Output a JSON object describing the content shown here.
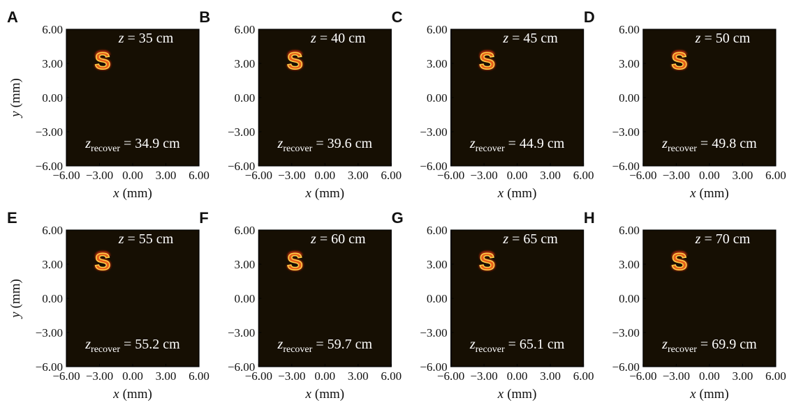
{
  "chart_data": [
    {
      "type": "image",
      "panel": "A",
      "top_label": {
        "symbol": "z",
        "text": "= 35 cm"
      },
      "bottom_label": {
        "symbol": "z",
        "subscript": "recover",
        "text": "= 34.9 cm"
      },
      "xlabel": {
        "symbol": "x",
        "text": "(mm)"
      },
      "ylabel": {
        "symbol": "y",
        "text": "(mm)"
      },
      "xlim": [
        -6,
        6
      ],
      "ylim": [
        -6,
        6
      ],
      "xticks": [
        {
          "value": -6,
          "label": "−6.00"
        },
        {
          "value": -3,
          "label": "−3.00"
        },
        {
          "value": 0,
          "label": "0.00"
        },
        {
          "value": 3,
          "label": "3.00"
        },
        {
          "value": 6,
          "label": "6.00"
        }
      ],
      "yticks": [
        {
          "value": -6,
          "label": "−6.00"
        },
        {
          "value": -3,
          "label": "−3.00"
        },
        {
          "value": 0,
          "label": "0.00"
        },
        {
          "value": 3,
          "label": "3.00"
        },
        {
          "value": 6,
          "label": "6.00"
        }
      ]
    },
    {
      "type": "image",
      "panel": "B",
      "top_label": {
        "symbol": "z",
        "text": "= 40 cm"
      },
      "bottom_label": {
        "symbol": "z",
        "subscript": "recover",
        "text": "= 39.6 cm"
      },
      "xlabel": {
        "symbol": "x",
        "text": "(mm)"
      },
      "xlim": [
        -6,
        6
      ],
      "ylim": [
        -6,
        6
      ],
      "xticks": [
        {
          "value": -6,
          "label": "−6.00"
        },
        {
          "value": -3,
          "label": "−3.00"
        },
        {
          "value": 0,
          "label": "0.00"
        },
        {
          "value": 3,
          "label": "3.00"
        },
        {
          "value": 6,
          "label": "6.00"
        }
      ],
      "yticks": [
        {
          "value": -6,
          "label": "−6.00"
        },
        {
          "value": -3,
          "label": "−3.00"
        },
        {
          "value": 0,
          "label": "0.00"
        },
        {
          "value": 3,
          "label": "3.00"
        },
        {
          "value": 6,
          "label": "6.00"
        }
      ]
    },
    {
      "type": "image",
      "panel": "C",
      "top_label": {
        "symbol": "z",
        "text": "= 45 cm"
      },
      "bottom_label": {
        "symbol": "z",
        "subscript": "recover",
        "text": "= 44.9 cm"
      },
      "xlabel": {
        "symbol": "x",
        "text": "(mm)"
      },
      "xlim": [
        -6,
        6
      ],
      "ylim": [
        -6,
        6
      ],
      "xticks": [
        {
          "value": -6,
          "label": "−6.00"
        },
        {
          "value": -3,
          "label": "−3.00"
        },
        {
          "value": 0,
          "label": "0.00"
        },
        {
          "value": 3,
          "label": "3.00"
        },
        {
          "value": 6,
          "label": "6.00"
        }
      ],
      "yticks": [
        {
          "value": -6,
          "label": "−6.00"
        },
        {
          "value": -3,
          "label": "−3.00"
        },
        {
          "value": 0,
          "label": "0.00"
        },
        {
          "value": 3,
          "label": "3.00"
        },
        {
          "value": 6,
          "label": "6.00"
        }
      ]
    },
    {
      "type": "image",
      "panel": "D",
      "top_label": {
        "symbol": "z",
        "text": "= 50 cm"
      },
      "bottom_label": {
        "symbol": "z",
        "subscript": "recover",
        "text": "= 49.8 cm"
      },
      "xlabel": {
        "symbol": "x",
        "text": "(mm)"
      },
      "xlim": [
        -6,
        6
      ],
      "ylim": [
        -6,
        6
      ],
      "xticks": [
        {
          "value": -6,
          "label": "−6.00"
        },
        {
          "value": -3,
          "label": "−3.00"
        },
        {
          "value": 0,
          "label": "0.00"
        },
        {
          "value": 3,
          "label": "3.00"
        },
        {
          "value": 6,
          "label": "6.00"
        }
      ],
      "yticks": [
        {
          "value": -6,
          "label": "−6.00"
        },
        {
          "value": -3,
          "label": "−3.00"
        },
        {
          "value": 0,
          "label": "0.00"
        },
        {
          "value": 3,
          "label": "3.00"
        },
        {
          "value": 6,
          "label": "6.00"
        }
      ]
    },
    {
      "type": "image",
      "panel": "E",
      "top_label": {
        "symbol": "z",
        "text": "= 55 cm"
      },
      "bottom_label": {
        "symbol": "z",
        "subscript": "recover",
        "text": "= 55.2 cm"
      },
      "xlabel": {
        "symbol": "x",
        "text": "(mm)"
      },
      "ylabel": {
        "symbol": "y",
        "text": "(mm)"
      },
      "xlim": [
        -6,
        6
      ],
      "ylim": [
        -6,
        6
      ],
      "xticks": [
        {
          "value": -6,
          "label": "−6.00"
        },
        {
          "value": -3,
          "label": "−3.00"
        },
        {
          "value": 0,
          "label": "0.00"
        },
        {
          "value": 3,
          "label": "3.00"
        },
        {
          "value": 6,
          "label": "6.00"
        }
      ],
      "yticks": [
        {
          "value": -6,
          "label": "−6.00"
        },
        {
          "value": -3,
          "label": "−3.00"
        },
        {
          "value": 0,
          "label": "0.00"
        },
        {
          "value": 3,
          "label": "3.00"
        },
        {
          "value": 6,
          "label": "6.00"
        }
      ]
    },
    {
      "type": "image",
      "panel": "F",
      "top_label": {
        "symbol": "z",
        "text": "= 60 cm"
      },
      "bottom_label": {
        "symbol": "z",
        "subscript": "recover",
        "text": "= 59.7 cm"
      },
      "xlabel": {
        "symbol": "x",
        "text": "(mm)"
      },
      "xlim": [
        -6,
        6
      ],
      "ylim": [
        -6,
        6
      ],
      "xticks": [
        {
          "value": -6,
          "label": "−6.00"
        },
        {
          "value": -3,
          "label": "−3.00"
        },
        {
          "value": 0,
          "label": "0.00"
        },
        {
          "value": 3,
          "label": "3.00"
        },
        {
          "value": 6,
          "label": "6.00"
        }
      ],
      "yticks": [
        {
          "value": -6,
          "label": "−6.00"
        },
        {
          "value": -3,
          "label": "−3.00"
        },
        {
          "value": 0,
          "label": "0.00"
        },
        {
          "value": 3,
          "label": "3.00"
        },
        {
          "value": 6,
          "label": "6.00"
        }
      ]
    },
    {
      "type": "image",
      "panel": "G",
      "top_label": {
        "symbol": "z",
        "text": "= 65 cm"
      },
      "bottom_label": {
        "symbol": "z",
        "subscript": "recover",
        "text": "= 65.1 cm"
      },
      "xlabel": {
        "symbol": "x",
        "text": "(mm)"
      },
      "xlim": [
        -6,
        6
      ],
      "ylim": [
        -6,
        6
      ],
      "xticks": [
        {
          "value": -6,
          "label": "−6.00"
        },
        {
          "value": -3,
          "label": "−3.00"
        },
        {
          "value": 0,
          "label": "0.00"
        },
        {
          "value": 3,
          "label": "3.00"
        },
        {
          "value": 6,
          "label": "6.00"
        }
      ],
      "yticks": [
        {
          "value": -6,
          "label": "−6.00"
        },
        {
          "value": -3,
          "label": "−3.00"
        },
        {
          "value": 0,
          "label": "0.00"
        },
        {
          "value": 3,
          "label": "3.00"
        },
        {
          "value": 6,
          "label": "6.00"
        }
      ]
    },
    {
      "type": "image",
      "panel": "H",
      "top_label": {
        "symbol": "z",
        "text": "= 70 cm"
      },
      "bottom_label": {
        "symbol": "z",
        "subscript": "recover",
        "text": "= 69.9 cm"
      },
      "xlabel": {
        "symbol": "x",
        "text": "(mm)"
      },
      "xlim": [
        -6,
        6
      ],
      "ylim": [
        -6,
        6
      ],
      "xticks": [
        {
          "value": -6,
          "label": "−6.00"
        },
        {
          "value": -3,
          "label": "−3.00"
        },
        {
          "value": 0,
          "label": "0.00"
        },
        {
          "value": 3,
          "label": "3.00"
        },
        {
          "value": 6,
          "label": "6.00"
        }
      ],
      "yticks": [
        {
          "value": -6,
          "label": "−6.00"
        },
        {
          "value": -3,
          "label": "−3.00"
        },
        {
          "value": 0,
          "label": "0.00"
        },
        {
          "value": 3,
          "label": "3.00"
        },
        {
          "value": 6,
          "label": "6.00"
        }
      ]
    }
  ]
}
